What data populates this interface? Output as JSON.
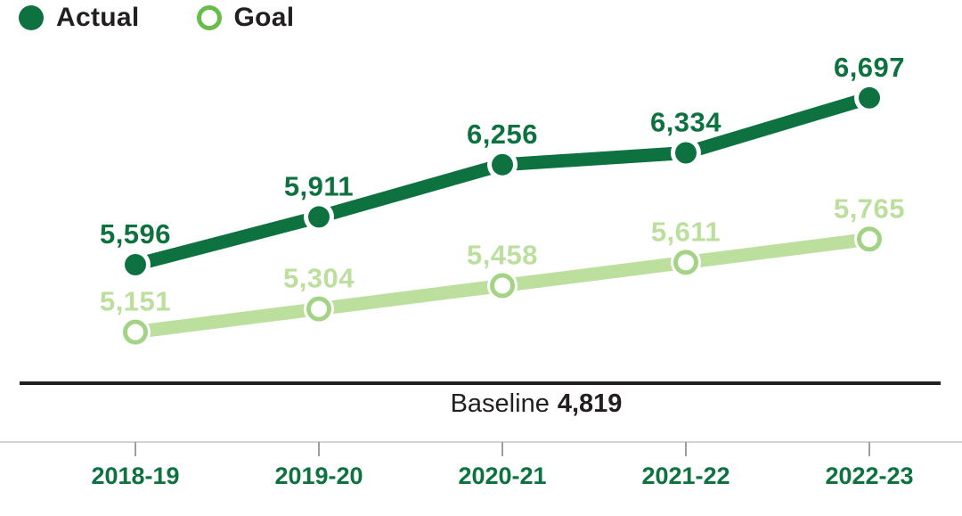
{
  "legend": {
    "items": [
      {
        "label": "Actual",
        "swatch": "filled-circle"
      },
      {
        "label": "Goal",
        "swatch": "open-circle"
      }
    ]
  },
  "baseline": {
    "label": "Baseline",
    "value": "4,819"
  },
  "colors": {
    "actual": "#0e7140",
    "goal_line": "#bcdf9d",
    "goal_marker_ring": "#a4d385",
    "goal_legend_ring": "#68bd4a",
    "text_dark": "#231f20",
    "axis_line": "#c3c3c3",
    "axis_tick": "#9e9e9e",
    "category_label": "#0e7140"
  },
  "chart_data": {
    "type": "line",
    "title": "",
    "categories": [
      "2018-19",
      "2019-20",
      "2020-21",
      "2021-22",
      "2022-23"
    ],
    "series": [
      {
        "name": "Actual",
        "values": [
          5596,
          5911,
          6256,
          6334,
          6697
        ],
        "labels": [
          "5,596",
          "5,911",
          "6,256",
          "6,334",
          "6,697"
        ],
        "color": "#0e7140",
        "marker": "filled"
      },
      {
        "name": "Goal",
        "values": [
          5151,
          5304,
          5458,
          5611,
          5765
        ],
        "labels": [
          "5,151",
          "5,304",
          "5,458",
          "5,611",
          "5,765"
        ],
        "color": "#bcdf9d",
        "marker": "open"
      }
    ],
    "baseline": {
      "label": "Baseline",
      "value": 4819,
      "value_label": "4,819"
    },
    "xlabel": "",
    "ylabel": "",
    "ylim": [
      4420,
      6930
    ],
    "grid": false,
    "legend_position": "top-left"
  }
}
